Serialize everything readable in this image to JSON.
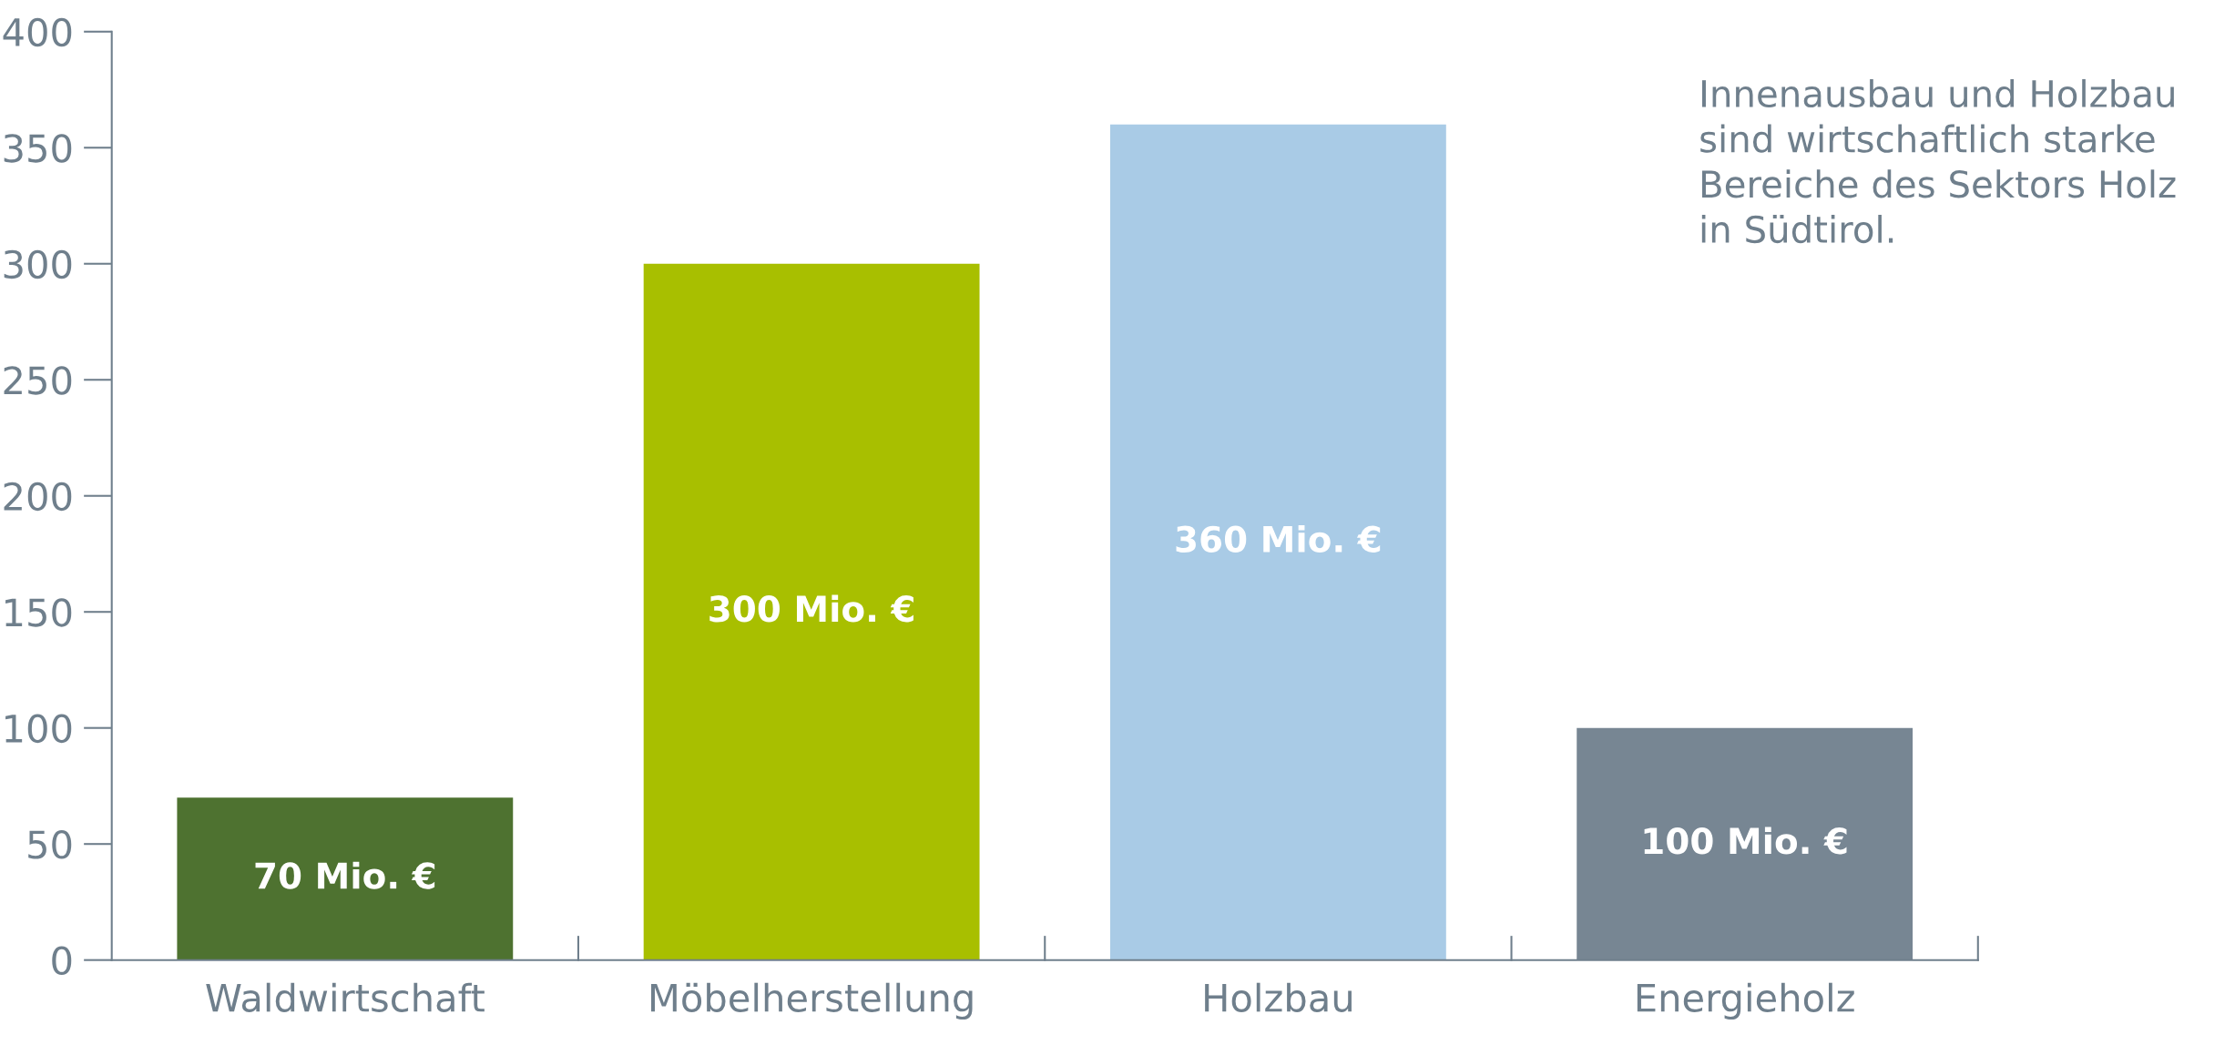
{
  "chart_data": {
    "type": "bar",
    "categories": [
      "Waldwirtschaft",
      "Möbelherstellung",
      "Holzbau",
      "Energieholz"
    ],
    "values": [
      70,
      300,
      360,
      100
    ],
    "colors": [
      "#4e7230",
      "#a8bf00",
      "#a9cbe6",
      "#778693"
    ],
    "value_labels": [
      "70 Mio. €",
      "300 Mio. €",
      "360 Mio. €",
      "100 Mio. €"
    ],
    "ylim": [
      0,
      400
    ],
    "yticks": [
      0,
      50,
      100,
      150,
      200,
      250,
      300,
      350,
      400
    ],
    "grid": false,
    "legend": false,
    "annotations": [
      "Innenausbau und Holzbau\nsind wirtschaftlich starke\nBereiche des Sektors Holz\nin Südtirol."
    ]
  }
}
